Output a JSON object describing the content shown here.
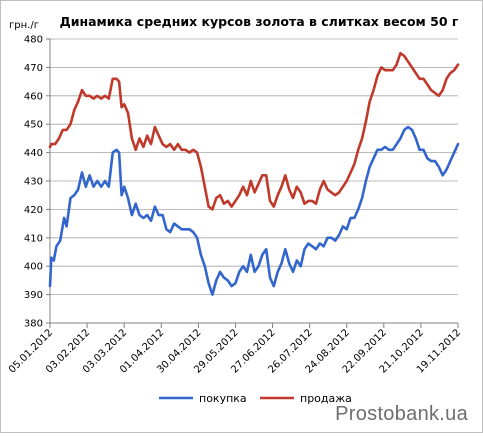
{
  "watermark": "Prostobank.ua",
  "chart_data": {
    "type": "line",
    "title": "Динамика средних курсов золота в слитках весом 50 г",
    "ylabel": "грн./г",
    "xlabel": "",
    "ylim": [
      380,
      480
    ],
    "yticks": [
      380,
      390,
      400,
      410,
      420,
      430,
      440,
      450,
      460,
      470,
      480
    ],
    "xlim": [
      "2012-01-05",
      "2012-11-19"
    ],
    "xticks": [
      "05.01.2012",
      "03.02.2012",
      "03.03.2012",
      "01.04.2012",
      "30.04.2012",
      "29.05.2012",
      "27.06.2012",
      "26.07.2012",
      "24.08.2012",
      "22.09.2012",
      "21.10.2012",
      "19.11.2012"
    ],
    "grid": "horizontal",
    "legend": "bottom",
    "series": [
      {
        "name": "покупка",
        "color": "#3366cc",
        "points": [
          [
            "2012-01-05",
            393
          ],
          [
            "2012-01-06",
            403
          ],
          [
            "2012-01-08",
            402
          ],
          [
            "2012-01-10",
            407
          ],
          [
            "2012-01-13",
            409
          ],
          [
            "2012-01-16",
            417
          ],
          [
            "2012-01-18",
            414
          ],
          [
            "2012-01-21",
            424
          ],
          [
            "2012-01-24",
            425
          ],
          [
            "2012-01-27",
            427
          ],
          [
            "2012-01-30",
            433
          ],
          [
            "2012-02-02",
            428
          ],
          [
            "2012-02-05",
            432
          ],
          [
            "2012-02-08",
            428
          ],
          [
            "2012-02-11",
            430
          ],
          [
            "2012-02-14",
            428
          ],
          [
            "2012-02-17",
            430
          ],
          [
            "2012-02-20",
            428
          ],
          [
            "2012-02-23",
            440
          ],
          [
            "2012-02-26",
            441
          ],
          [
            "2012-02-28",
            440
          ],
          [
            "2012-03-01",
            425
          ],
          [
            "2012-03-03",
            428
          ],
          [
            "2012-03-06",
            424
          ],
          [
            "2012-03-09",
            418
          ],
          [
            "2012-03-12",
            422
          ],
          [
            "2012-03-15",
            418
          ],
          [
            "2012-03-18",
            417
          ],
          [
            "2012-03-21",
            418
          ],
          [
            "2012-03-24",
            416
          ],
          [
            "2012-03-27",
            421
          ],
          [
            "2012-03-30",
            418
          ],
          [
            "2012-04-02",
            418
          ],
          [
            "2012-04-05",
            413
          ],
          [
            "2012-04-08",
            412
          ],
          [
            "2012-04-11",
            415
          ],
          [
            "2012-04-14",
            414
          ],
          [
            "2012-04-17",
            413
          ],
          [
            "2012-04-20",
            413
          ],
          [
            "2012-04-23",
            413
          ],
          [
            "2012-04-26",
            412
          ],
          [
            "2012-04-29",
            410
          ],
          [
            "2012-05-02",
            404
          ],
          [
            "2012-05-05",
            400
          ],
          [
            "2012-05-08",
            394
          ],
          [
            "2012-05-11",
            390
          ],
          [
            "2012-05-14",
            395
          ],
          [
            "2012-05-17",
            398
          ],
          [
            "2012-05-20",
            396
          ],
          [
            "2012-05-23",
            395
          ],
          [
            "2012-05-26",
            393
          ],
          [
            "2012-05-29",
            394
          ],
          [
            "2012-06-01",
            398
          ],
          [
            "2012-06-04",
            400
          ],
          [
            "2012-06-07",
            398
          ],
          [
            "2012-06-10",
            404
          ],
          [
            "2012-06-13",
            398
          ],
          [
            "2012-06-16",
            400
          ],
          [
            "2012-06-19",
            404
          ],
          [
            "2012-06-22",
            406
          ],
          [
            "2012-06-25",
            396
          ],
          [
            "2012-06-28",
            393
          ],
          [
            "2012-07-01",
            398
          ],
          [
            "2012-07-04",
            401
          ],
          [
            "2012-07-07",
            406
          ],
          [
            "2012-07-10",
            401
          ],
          [
            "2012-07-13",
            398
          ],
          [
            "2012-07-16",
            402
          ],
          [
            "2012-07-19",
            400
          ],
          [
            "2012-07-22",
            406
          ],
          [
            "2012-07-25",
            408
          ],
          [
            "2012-07-28",
            407
          ],
          [
            "2012-07-31",
            406
          ],
          [
            "2012-08-03",
            408
          ],
          [
            "2012-08-06",
            407
          ],
          [
            "2012-08-09",
            410
          ],
          [
            "2012-08-12",
            410
          ],
          [
            "2012-08-15",
            409
          ],
          [
            "2012-08-18",
            411
          ],
          [
            "2012-08-21",
            414
          ],
          [
            "2012-08-24",
            413
          ],
          [
            "2012-08-27",
            417
          ],
          [
            "2012-08-30",
            417
          ],
          [
            "2012-09-02",
            420
          ],
          [
            "2012-09-05",
            424
          ],
          [
            "2012-09-08",
            430
          ],
          [
            "2012-09-11",
            435
          ],
          [
            "2012-09-14",
            438
          ],
          [
            "2012-09-17",
            441
          ],
          [
            "2012-09-20",
            441
          ],
          [
            "2012-09-23",
            442
          ],
          [
            "2012-09-26",
            441
          ],
          [
            "2012-09-29",
            441
          ],
          [
            "2012-10-02",
            443
          ],
          [
            "2012-10-05",
            445
          ],
          [
            "2012-10-08",
            448
          ],
          [
            "2012-10-11",
            449
          ],
          [
            "2012-10-14",
            448
          ],
          [
            "2012-10-17",
            445
          ],
          [
            "2012-10-20",
            441
          ],
          [
            "2012-10-23",
            441
          ],
          [
            "2012-10-26",
            438
          ],
          [
            "2012-10-29",
            437
          ],
          [
            "2012-11-01",
            437
          ],
          [
            "2012-11-04",
            435
          ],
          [
            "2012-11-07",
            432
          ],
          [
            "2012-11-10",
            434
          ],
          [
            "2012-11-13",
            437
          ],
          [
            "2012-11-16",
            440
          ],
          [
            "2012-11-19",
            443
          ]
        ]
      },
      {
        "name": "продажа",
        "color": "#c0392b",
        "points": [
          [
            "2012-01-05",
            442
          ],
          [
            "2012-01-06",
            443
          ],
          [
            "2012-01-09",
            443
          ],
          [
            "2012-01-12",
            445
          ],
          [
            "2012-01-15",
            448
          ],
          [
            "2012-01-18",
            448
          ],
          [
            "2012-01-21",
            450
          ],
          [
            "2012-01-24",
            455
          ],
          [
            "2012-01-27",
            458
          ],
          [
            "2012-01-30",
            462
          ],
          [
            "2012-02-02",
            460
          ],
          [
            "2012-02-05",
            460
          ],
          [
            "2012-02-08",
            459
          ],
          [
            "2012-02-11",
            460
          ],
          [
            "2012-02-14",
            459
          ],
          [
            "2012-02-17",
            460
          ],
          [
            "2012-02-20",
            459
          ],
          [
            "2012-02-23",
            466
          ],
          [
            "2012-02-26",
            466
          ],
          [
            "2012-02-28",
            465
          ],
          [
            "2012-03-01",
            456
          ],
          [
            "2012-03-03",
            457
          ],
          [
            "2012-03-06",
            454
          ],
          [
            "2012-03-09",
            445
          ],
          [
            "2012-03-12",
            441
          ],
          [
            "2012-03-15",
            445
          ],
          [
            "2012-03-18",
            442
          ],
          [
            "2012-03-21",
            446
          ],
          [
            "2012-03-24",
            443
          ],
          [
            "2012-03-27",
            449
          ],
          [
            "2012-03-30",
            446
          ],
          [
            "2012-04-02",
            443
          ],
          [
            "2012-04-05",
            442
          ],
          [
            "2012-04-08",
            443
          ],
          [
            "2012-04-11",
            441
          ],
          [
            "2012-04-14",
            443
          ],
          [
            "2012-04-17",
            441
          ],
          [
            "2012-04-20",
            441
          ],
          [
            "2012-04-23",
            440
          ],
          [
            "2012-04-26",
            441
          ],
          [
            "2012-04-29",
            440
          ],
          [
            "2012-05-02",
            435
          ],
          [
            "2012-05-05",
            428
          ],
          [
            "2012-05-08",
            421
          ],
          [
            "2012-05-11",
            420
          ],
          [
            "2012-05-14",
            424
          ],
          [
            "2012-05-17",
            425
          ],
          [
            "2012-05-20",
            422
          ],
          [
            "2012-05-23",
            423
          ],
          [
            "2012-05-26",
            421
          ],
          [
            "2012-05-29",
            423
          ],
          [
            "2012-06-01",
            425
          ],
          [
            "2012-06-04",
            428
          ],
          [
            "2012-06-07",
            425
          ],
          [
            "2012-06-10",
            430
          ],
          [
            "2012-06-13",
            426
          ],
          [
            "2012-06-16",
            429
          ],
          [
            "2012-06-19",
            432
          ],
          [
            "2012-06-22",
            432
          ],
          [
            "2012-06-25",
            423
          ],
          [
            "2012-06-28",
            421
          ],
          [
            "2012-07-01",
            425
          ],
          [
            "2012-07-04",
            428
          ],
          [
            "2012-07-07",
            432
          ],
          [
            "2012-07-10",
            427
          ],
          [
            "2012-07-13",
            424
          ],
          [
            "2012-07-16",
            428
          ],
          [
            "2012-07-19",
            426
          ],
          [
            "2012-07-22",
            422
          ],
          [
            "2012-07-25",
            423
          ],
          [
            "2012-07-28",
            423
          ],
          [
            "2012-07-31",
            422
          ],
          [
            "2012-08-03",
            427
          ],
          [
            "2012-08-06",
            430
          ],
          [
            "2012-08-09",
            427
          ],
          [
            "2012-08-12",
            426
          ],
          [
            "2012-08-15",
            425
          ],
          [
            "2012-08-18",
            426
          ],
          [
            "2012-08-21",
            428
          ],
          [
            "2012-08-24",
            430
          ],
          [
            "2012-08-27",
            433
          ],
          [
            "2012-08-30",
            436
          ],
          [
            "2012-09-02",
            441
          ],
          [
            "2012-09-05",
            445
          ],
          [
            "2012-09-08",
            451
          ],
          [
            "2012-09-11",
            458
          ],
          [
            "2012-09-14",
            462
          ],
          [
            "2012-09-17",
            467
          ],
          [
            "2012-09-20",
            470
          ],
          [
            "2012-09-23",
            469
          ],
          [
            "2012-09-26",
            469
          ],
          [
            "2012-09-29",
            469
          ],
          [
            "2012-10-02",
            471
          ],
          [
            "2012-10-05",
            475
          ],
          [
            "2012-10-08",
            474
          ],
          [
            "2012-10-11",
            472
          ],
          [
            "2012-10-14",
            470
          ],
          [
            "2012-10-17",
            468
          ],
          [
            "2012-10-20",
            466
          ],
          [
            "2012-10-23",
            466
          ],
          [
            "2012-10-26",
            464
          ],
          [
            "2012-10-29",
            462
          ],
          [
            "2012-11-01",
            461
          ],
          [
            "2012-11-04",
            460
          ],
          [
            "2012-11-07",
            462
          ],
          [
            "2012-11-10",
            466
          ],
          [
            "2012-11-13",
            468
          ],
          [
            "2012-11-16",
            469
          ],
          [
            "2012-11-19",
            471
          ]
        ]
      }
    ]
  }
}
